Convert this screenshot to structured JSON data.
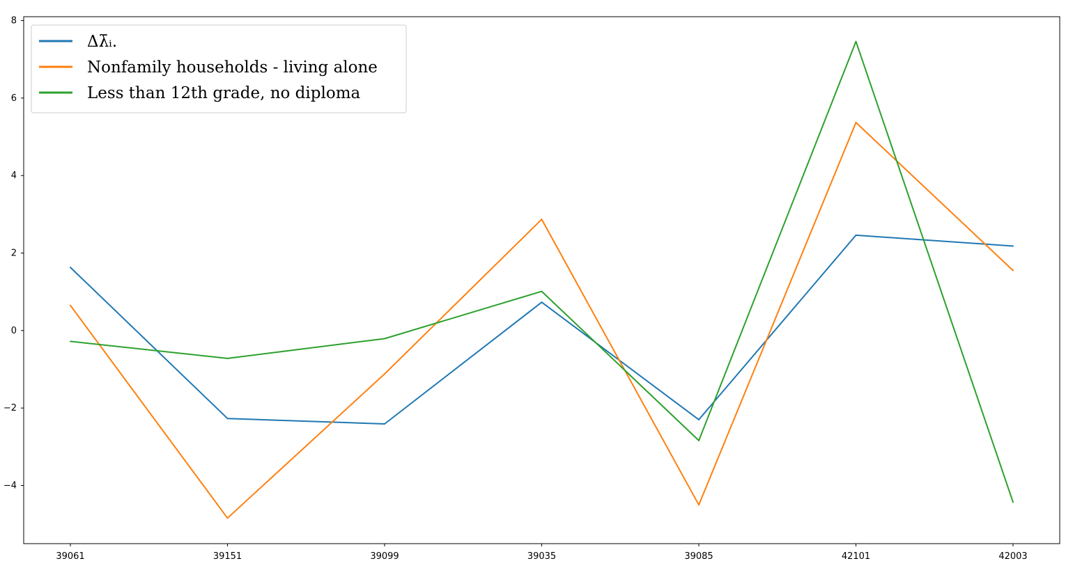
{
  "chart_data": {
    "type": "line",
    "categories": [
      "39061",
      "39151",
      "39099",
      "39035",
      "39085",
      "42101",
      "42003"
    ],
    "series": [
      {
        "name": "Δλ̄ᵢ.",
        "color": "#1f77b4",
        "values": [
          1.63,
          -2.27,
          -2.41,
          0.73,
          -2.3,
          2.46,
          2.18
        ]
      },
      {
        "name": "Nonfamily households - living alone",
        "color": "#ff7f0e",
        "values": [
          0.65,
          -4.84,
          -1.12,
          2.87,
          -4.5,
          5.37,
          1.55
        ]
      },
      {
        "name": "Less than 12th grade, no diploma",
        "color": "#2ca02c",
        "values": [
          -0.28,
          -0.72,
          -0.21,
          1.01,
          -2.84,
          7.46,
          -4.43
        ]
      }
    ],
    "yticks": [
      "8",
      "6",
      "4",
      "2",
      "0",
      "−2",
      "−4"
    ],
    "ylim": [
      -5.5,
      8.1
    ],
    "grid": false,
    "legend_position": "top-left",
    "title": "",
    "xlabel": "",
    "ylabel": ""
  }
}
